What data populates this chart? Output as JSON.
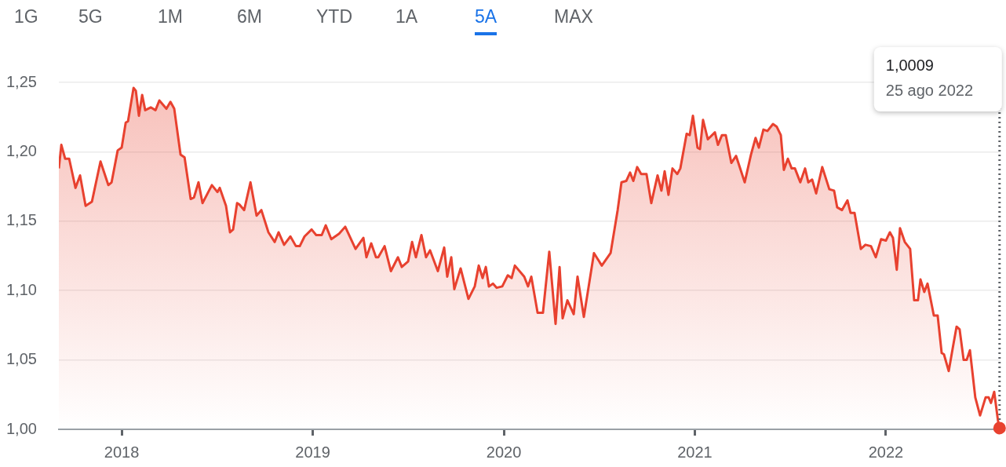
{
  "chart_data": {
    "type": "area",
    "x": [
      2017.671,
      2017.684,
      2017.704,
      2017.725,
      2017.758,
      2017.782,
      2017.811,
      2017.844,
      2017.889,
      2017.93,
      2017.947,
      2017.979,
      2018.0,
      2018.021,
      2018.033,
      2018.062,
      2018.074,
      2018.09,
      2018.107,
      2018.123,
      2018.152,
      2018.177,
      2018.197,
      2018.234,
      2018.255,
      2018.275,
      2018.308,
      2018.329,
      2018.361,
      2018.378,
      2018.402,
      2018.423,
      2018.472,
      2018.501,
      2018.513,
      2018.546,
      2018.567,
      2018.583,
      2018.604,
      2018.616,
      2018.641,
      2018.674,
      2018.706,
      2018.731,
      2018.768,
      2018.801,
      2018.821,
      2018.85,
      2018.883,
      2018.912,
      2018.932,
      2018.957,
      2018.994,
      2019.018,
      2019.047,
      2019.068,
      2019.097,
      2019.138,
      2019.17,
      2019.224,
      2019.265,
      2019.281,
      2019.306,
      2019.331,
      2019.343,
      2019.376,
      2019.409,
      2019.446,
      2019.466,
      2019.499,
      2019.52,
      2019.54,
      2019.569,
      2019.593,
      2019.614,
      2019.655,
      2019.688,
      2019.704,
      2019.725,
      2019.741,
      2019.774,
      2019.815,
      2019.848,
      2019.869,
      2019.889,
      2019.906,
      2019.922,
      2019.943,
      2019.963,
      2019.992,
      2020.021,
      2020.041,
      2020.058,
      2020.107,
      2020.127,
      2020.144,
      2020.177,
      2020.205,
      2020.238,
      2020.271,
      2020.292,
      2020.308,
      2020.333,
      2020.366,
      2020.386,
      2020.419,
      2020.472,
      2020.513,
      2020.559,
      2020.596,
      2020.616,
      2020.641,
      2020.661,
      2020.678,
      2020.698,
      2020.719,
      2020.747,
      2020.772,
      2020.805,
      2020.825,
      2020.842,
      2020.862,
      2020.883,
      2020.908,
      2020.924,
      2020.957,
      2020.973,
      2020.99,
      2021.014,
      2021.027,
      2021.043,
      2021.068,
      2021.105,
      2021.121,
      2021.142,
      2021.162,
      2021.191,
      2021.216,
      2021.261,
      2021.294,
      2021.318,
      2021.335,
      2021.359,
      2021.38,
      2021.409,
      2021.429,
      2021.45,
      2021.466,
      2021.487,
      2021.507,
      2021.524,
      2021.552,
      2021.577,
      2021.594,
      2021.614,
      2021.635,
      2021.667,
      2021.704,
      2021.729,
      2021.745,
      2021.77,
      2021.799,
      2021.815,
      2021.836,
      2021.869,
      2021.893,
      2021.922,
      2021.947,
      2021.975,
      2022.0,
      2022.021,
      2022.037,
      2022.057,
      2022.074,
      2022.099,
      2022.127,
      2022.148,
      2022.168,
      2022.181,
      2022.201,
      2022.218,
      2022.251,
      2022.271,
      2022.292,
      2022.304,
      2022.329,
      2022.353,
      2022.37,
      2022.386,
      2022.407,
      2022.423,
      2022.44,
      2022.468,
      2022.493,
      2022.522,
      2022.538,
      2022.55,
      2022.567,
      2022.587,
      2022.595
    ],
    "series": [
      {
        "color": "#e8412f",
        "values": [
          1.188,
          1.205,
          1.195,
          1.195,
          1.174,
          1.183,
          1.161,
          1.164,
          1.193,
          1.176,
          1.178,
          1.201,
          1.203,
          1.221,
          1.222,
          1.246,
          1.244,
          1.226,
          1.241,
          1.23,
          1.232,
          1.23,
          1.237,
          1.231,
          1.236,
          1.231,
          1.198,
          1.196,
          1.166,
          1.167,
          1.178,
          1.163,
          1.176,
          1.171,
          1.174,
          1.161,
          1.142,
          1.144,
          1.163,
          1.162,
          1.158,
          1.178,
          1.154,
          1.158,
          1.142,
          1.135,
          1.142,
          1.133,
          1.139,
          1.132,
          1.132,
          1.139,
          1.144,
          1.14,
          1.14,
          1.147,
          1.137,
          1.141,
          1.146,
          1.13,
          1.138,
          1.124,
          1.134,
          1.124,
          1.124,
          1.132,
          1.114,
          1.124,
          1.117,
          1.121,
          1.135,
          1.124,
          1.14,
          1.124,
          1.129,
          1.114,
          1.131,
          1.11,
          1.124,
          1.101,
          1.116,
          1.094,
          1.103,
          1.118,
          1.109,
          1.117,
          1.103,
          1.105,
          1.102,
          1.103,
          1.111,
          1.109,
          1.118,
          1.11,
          1.103,
          1.11,
          1.084,
          1.084,
          1.128,
          1.076,
          1.117,
          1.08,
          1.093,
          1.083,
          1.11,
          1.081,
          1.127,
          1.118,
          1.127,
          1.158,
          1.178,
          1.179,
          1.185,
          1.179,
          1.189,
          1.184,
          1.184,
          1.163,
          1.183,
          1.172,
          1.186,
          1.169,
          1.188,
          1.184,
          1.188,
          1.213,
          1.212,
          1.226,
          1.203,
          1.202,
          1.223,
          1.209,
          1.214,
          1.205,
          1.212,
          1.212,
          1.192,
          1.197,
          1.178,
          1.198,
          1.21,
          1.203,
          1.216,
          1.215,
          1.22,
          1.218,
          1.212,
          1.187,
          1.195,
          1.188,
          1.188,
          1.178,
          1.188,
          1.178,
          1.18,
          1.17,
          1.189,
          1.173,
          1.172,
          1.16,
          1.158,
          1.165,
          1.156,
          1.156,
          1.13,
          1.133,
          1.132,
          1.124,
          1.137,
          1.136,
          1.142,
          1.138,
          1.115,
          1.145,
          1.135,
          1.13,
          1.093,
          1.093,
          1.108,
          1.099,
          1.105,
          1.082,
          1.082,
          1.055,
          1.054,
          1.042,
          1.061,
          1.074,
          1.072,
          1.05,
          1.05,
          1.057,
          1.023,
          1.01,
          1.023,
          1.023,
          1.019,
          1.027,
          1.006,
          1.0009
        ]
      }
    ],
    "xlim": [
      2017.671,
      2022.6
    ],
    "xticks": [
      2018,
      2019,
      2020,
      2021,
      2022
    ],
    "ylim": [
      1.0,
      1.25
    ],
    "yticks": [
      {
        "value": 1.0,
        "label": "1,00"
      },
      {
        "value": 1.05,
        "label": "1,05"
      },
      {
        "value": 1.1,
        "label": "1,10"
      },
      {
        "value": 1.15,
        "label": "1,15"
      },
      {
        "value": 1.2,
        "label": "1,20"
      },
      {
        "value": 1.25,
        "label": "1,25"
      }
    ],
    "grid": "y",
    "ref_lines": [
      {
        "axis": "x",
        "value": 2022.595,
        "line_style": "dotted",
        "color": "#5f6368"
      }
    ],
    "annotations": [
      "1G",
      "5G",
      "1M",
      "6M",
      "YTD",
      "1A",
      "5A",
      "MAX",
      "1,0009",
      "25 ago 2022"
    ]
  }
}
